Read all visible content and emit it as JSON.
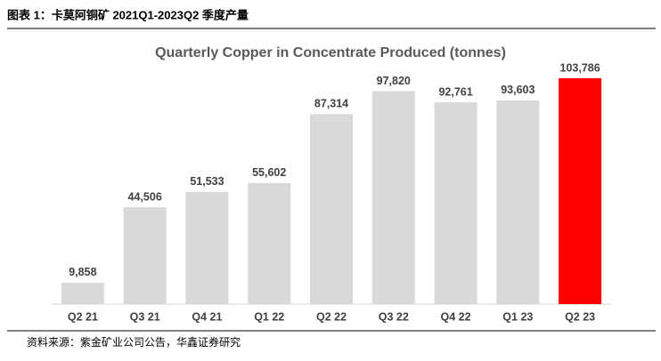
{
  "header": {
    "title": "图表 1：卡莫阿铜矿 2021Q1-2023Q2 季度产量"
  },
  "chart_data": {
    "type": "bar",
    "title": "Quarterly Copper in Concentrate Produced (tonnes)",
    "categories": [
      "Q2 21",
      "Q3 21",
      "Q4 21",
      "Q1 22",
      "Q2 22",
      "Q3 22",
      "Q4 22",
      "Q1 23",
      "Q2 23"
    ],
    "values": [
      9858,
      44506,
      51533,
      55602,
      87314,
      97820,
      92761,
      93603,
      103786
    ],
    "value_labels": [
      "9,858",
      "44,506",
      "51,533",
      "55,602",
      "87,314",
      "97,820",
      "92,761",
      "93,603",
      "103,786"
    ],
    "colors": [
      "#d9d9d9",
      "#d9d9d9",
      "#d9d9d9",
      "#d9d9d9",
      "#d9d9d9",
      "#d9d9d9",
      "#d9d9d9",
      "#d9d9d9",
      "#ff0000"
    ]
  },
  "source": "资料来源：紫金矿业公司公告，华鑫证券研究"
}
